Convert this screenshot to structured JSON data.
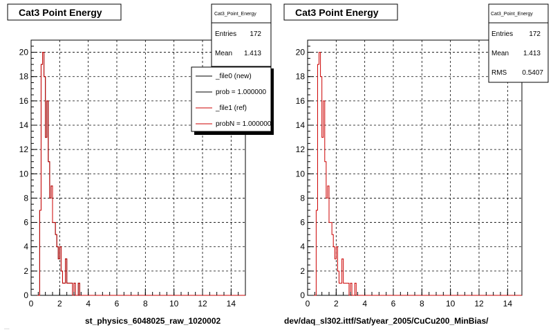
{
  "chart_data": [
    {
      "type": "step",
      "title": "Cat3 Point Energy",
      "xlabel": "st_physics_6048025_raw_1020002",
      "ylabel": "",
      "xlim": [
        0,
        15
      ],
      "ylim": [
        0,
        21
      ],
      "x_ticks": [
        0,
        2,
        4,
        6,
        8,
        10,
        12,
        14
      ],
      "y_ticks": [
        0,
        2,
        4,
        6,
        8,
        10,
        12,
        14,
        16,
        18,
        20
      ],
      "grid": true,
      "bin_width": 0.1,
      "series": [
        {
          "name": "_file0 (new)",
          "color": "#000000",
          "x": [
            0.4,
            0.5,
            0.6,
            0.7,
            0.8,
            0.9,
            1.0,
            1.1,
            1.2,
            1.3,
            1.4,
            1.5,
            1.6,
            1.7,
            1.8,
            1.9,
            2.0,
            2.1,
            2.2,
            2.3,
            2.4,
            2.5,
            2.6,
            2.7,
            2.8,
            2.9,
            3.0,
            3.1,
            3.2,
            3.3,
            3.4,
            3.5,
            3.6
          ],
          "values": [
            0,
            0,
            7,
            19,
            20,
            18,
            13,
            16,
            11,
            8,
            9,
            6,
            6,
            5,
            4,
            3,
            4,
            2,
            1,
            1,
            3,
            1,
            1,
            1,
            1,
            0,
            1,
            0,
            0,
            1,
            0,
            0,
            0
          ]
        },
        {
          "name": "_file1 (ref)",
          "color": "#cc0000",
          "x": [
            0.4,
            0.5,
            0.6,
            0.7,
            0.8,
            0.9,
            1.0,
            1.1,
            1.2,
            1.3,
            1.4,
            1.5,
            1.6,
            1.7,
            1.8,
            1.9,
            2.0,
            2.1,
            2.2,
            2.3,
            2.4,
            2.5,
            2.6,
            2.7,
            2.8,
            2.9,
            3.0,
            3.1,
            3.2,
            3.3,
            3.4,
            3.5,
            3.6
          ],
          "values": [
            0,
            0,
            7,
            19,
            20,
            18,
            13,
            16,
            11,
            8,
            9,
            6,
            6,
            5,
            4,
            3,
            4,
            2,
            1,
            1,
            3,
            1,
            1,
            1,
            1,
            0,
            1,
            0,
            0,
            1,
            0,
            0,
            0
          ]
        }
      ],
      "stats": {
        "name": "Cat3_Point_Energy",
        "entries_label": "Entries",
        "entries": "172",
        "mean_label": "Mean",
        "mean": "1.413"
      },
      "legend": {
        "placement": "top-right",
        "entries": [
          "_file0 (new)",
          "prob = 1.000000",
          "_file1 (ref)",
          "probN = 1.000000"
        ]
      }
    },
    {
      "type": "step",
      "title": "Cat3 Point Energy",
      "xlabel": "dev/daq_sl302.ittf/Sat/year_2005/CuCu200_MinBias/",
      "ylabel": "",
      "xlim": [
        0,
        15
      ],
      "ylim": [
        0,
        21
      ],
      "x_ticks": [
        0,
        2,
        4,
        6,
        8,
        10,
        12,
        14
      ],
      "y_ticks": [
        0,
        2,
        4,
        6,
        8,
        10,
        12,
        14,
        16,
        18,
        20
      ],
      "grid": true,
      "bin_width": 0.1,
      "series": [
        {
          "name": "_file1 (ref)",
          "color": "#cc0000",
          "x": [
            0.4,
            0.5,
            0.6,
            0.7,
            0.8,
            0.9,
            1.0,
            1.1,
            1.2,
            1.3,
            1.4,
            1.5,
            1.6,
            1.7,
            1.8,
            1.9,
            2.0,
            2.1,
            2.2,
            2.3,
            2.4,
            2.5,
            2.6,
            2.7,
            2.8,
            2.9,
            3.0,
            3.1,
            3.2,
            3.3,
            3.4,
            3.5,
            3.6
          ],
          "values": [
            0,
            0,
            7,
            19,
            20,
            18,
            13,
            16,
            11,
            8,
            9,
            6,
            6,
            5,
            4,
            3,
            4,
            2,
            1,
            1,
            3,
            1,
            1,
            1,
            1,
            0,
            1,
            0,
            0,
            1,
            0,
            0,
            0
          ]
        }
      ],
      "stats": {
        "name": "Cat3_Point_Energy",
        "entries_label": "Entries",
        "entries": "172",
        "mean_label": "Mean",
        "mean": "1.413",
        "rms_label": "RMS",
        "rms": "0.5407"
      }
    }
  ],
  "footer_text": "...."
}
